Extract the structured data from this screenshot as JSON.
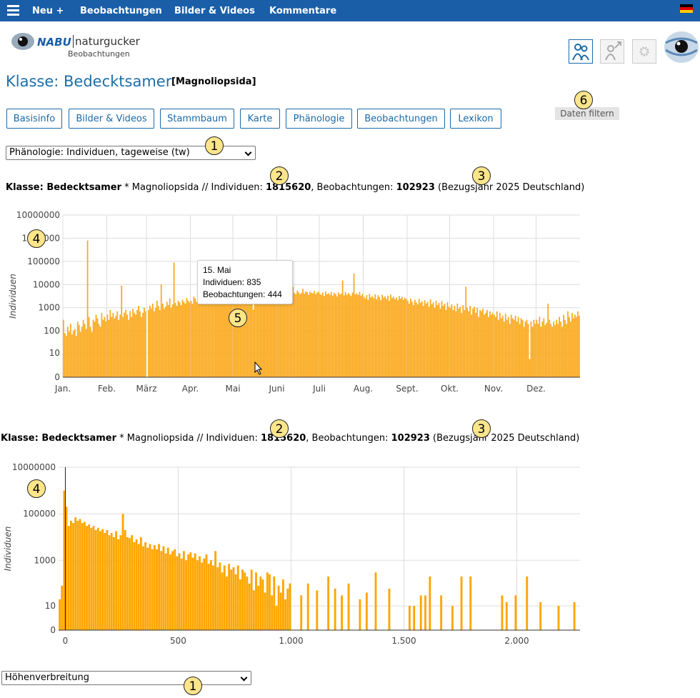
{
  "nav": {
    "items": [
      "Neu +",
      "Beobachtungen",
      "Bilder & Videos",
      "Kommentare"
    ]
  },
  "logo": {
    "brand": "NABU",
    "name": "naturgucker",
    "sub": "Beobachtungen"
  },
  "header": {
    "title": "Klasse: Bedecktsamer",
    "latin": "[Magnoliopsida]"
  },
  "tabs": [
    "Basisinfo",
    "Bilder & Videos",
    "Stammbaum",
    "Karte",
    "Phänologie",
    "Beobachtungen",
    "Lexikon"
  ],
  "filter_button": "Daten filtern",
  "selects": [
    "Phänologie: Individuen, tageweise (tw)",
    "Höhenverbreitung"
  ],
  "summary": {
    "taxon": "Klasse: Bedecktsamer",
    "mid": " * Magnoliopsida // Individuen: ",
    "individuals": 1815620,
    "obs_label": ", Beobachtungen: ",
    "observations": 102923,
    "suffix": " (Bezugsjahr 2025 Deutschland)"
  },
  "tooltip": {
    "date": "15. Mai",
    "individuals": "Individuen: 835",
    "observations": "Beobachtungen: 444"
  },
  "annotations": [
    "1",
    "2",
    "3",
    "4",
    "5",
    "6"
  ],
  "chart_data": [
    {
      "type": "bar",
      "ylabel": "Individuen",
      "color": "#fbaa1e",
      "yscale": "symlog",
      "grid": true,
      "ylim": [
        0,
        10000000
      ],
      "yticks": [
        0,
        10,
        100,
        1000,
        10000,
        100000,
        1000000,
        10000000
      ],
      "months": [
        {
          "label": "Jan.",
          "values": [
            300,
            80,
            60,
            150,
            90,
            200,
            70,
            100,
            120,
            60,
            250,
            180,
            90,
            150,
            300,
            200,
            120,
            800000,
            400,
            150,
            90,
            300,
            250,
            500,
            350,
            200,
            150,
            600,
            300,
            400,
            250
          ]
        },
        {
          "label": "Feb.",
          "values": [
            500,
            300,
            800,
            400,
            600,
            350,
            450,
            700,
            300,
            500,
            9000,
            400,
            600,
            800,
            500,
            300,
            700,
            400,
            900,
            600,
            500,
            800,
            1200,
            700,
            400,
            600,
            1000,
            700
          ]
        },
        {
          "label": "März",
          "values": [
            0,
            800,
            1200,
            900,
            1500,
            700,
            1000,
            2000,
            1200,
            800,
            10000,
            1500,
            900,
            1100,
            1800,
            1300,
            2500,
            1000,
            1400,
            90000,
            1600,
            1200,
            2000,
            1700,
            1300,
            2200,
            1800,
            1500,
            2600,
            2000,
            1700
          ]
        },
        {
          "label": "Apr.",
          "values": [
            2000,
            1500,
            3000,
            2500,
            1800,
            8000,
            2200,
            2800,
            1900,
            3500,
            2400,
            2000,
            3200,
            2700,
            5000,
            2300,
            3000,
            2600,
            4000,
            2100,
            3300,
            2900,
            2500,
            3800,
            2700,
            3100,
            2400,
            3600,
            2800,
            3400
          ]
        },
        {
          "label": "Mai",
          "values": [
            3000,
            4500,
            2500,
            3800,
            3200,
            4200,
            2800,
            3600,
            5000,
            3100,
            4000,
            2900,
            3500,
            3300,
            835,
            4000,
            3000,
            4500,
            3700,
            2800,
            3900,
            4200,
            3100,
            5500,
            3600,
            4300,
            2900,
            3800,
            4600,
            3500,
            4100
          ]
        },
        {
          "label": "Juni",
          "values": [
            3500,
            5000,
            3800,
            4200,
            6000,
            3600,
            4500,
            3900,
            5200,
            4100,
            3700,
            8000,
            4300,
            3800,
            5500,
            4600,
            3900,
            4400,
            6500,
            4000,
            5100,
            4700,
            3600,
            4900,
            4400,
            4200,
            5300,
            3800,
            4500,
            5000
          ]
        },
        {
          "label": "Juli",
          "values": [
            4000,
            3500,
            4500,
            3200,
            5000,
            3800,
            4200,
            3600,
            4800,
            3300,
            4400,
            3900,
            3100,
            4600,
            3700,
            4100,
            15000,
            3400,
            4700,
            3600,
            4300,
            3800,
            3200,
            4500,
            30000,
            3700,
            4200,
            3500,
            4800,
            3300,
            4000
          ]
        },
        {
          "label": "Aug.",
          "values": [
            3000,
            2500,
            3500,
            2200,
            4000,
            2800,
            3200,
            2600,
            3800,
            2300,
            3400,
            2900,
            2100,
            3600,
            2700,
            3100,
            2400,
            3300,
            2000,
            3700,
            2600,
            3000,
            2300,
            2800,
            2100,
            3200,
            2500,
            2900,
            2200,
            2700,
            2400
          ]
        },
        {
          "label": "Sept.",
          "values": [
            2000,
            1500,
            2500,
            1800,
            1300,
            2200,
            1700,
            1400,
            2400,
            1600,
            1900,
            1200,
            2100,
            1500,
            1800,
            1100,
            2300,
            1400,
            1700,
            1000,
            2000,
            1300,
            1600,
            900,
            1900,
            1200,
            1500,
            800,
            1700,
            1100
          ]
        },
        {
          "label": "Okt.",
          "values": [
            1000,
            1400,
            800,
            1200,
            700,
            1500,
            900,
            1100,
            600,
            1300,
            800,
            8000,
            1000,
            700,
            1200,
            500,
            900,
            1100,
            600,
            1000,
            400,
            800,
            700,
            900,
            500,
            600,
            800,
            400,
            700,
            500,
            600
          ]
        },
        {
          "label": "Nov.",
          "values": [
            500,
            400,
            700,
            300,
            600,
            350,
            450,
            250,
            550,
            300,
            400,
            200,
            500,
            350,
            300,
            450,
            250,
            400,
            200,
            350,
            300,
            150,
            250,
            300,
            200,
            5,
            250,
            150,
            300,
            200
          ]
        },
        {
          "label": "Dez.",
          "values": [
            300,
            200,
            400,
            150,
            250,
            350,
            180,
            220,
            1500,
            300,
            200,
            150,
            250,
            180,
            300,
            200,
            400,
            250,
            150,
            500,
            300,
            200,
            700,
            400,
            250,
            600,
            350,
            500,
            400,
            700,
            450
          ]
        }
      ]
    },
    {
      "type": "bar",
      "ylabel": "Individuen",
      "color": "#ffa500",
      "yscale": "symlog",
      "grid": true,
      "ylim": [
        0,
        10000000
      ],
      "yticks": [
        0,
        10,
        1000,
        100000,
        10000000
      ],
      "xlim": [
        -30,
        2280
      ],
      "xticks": [
        0,
        500,
        {
          "value": 1000,
          "label": "1.000"
        },
        {
          "value": 1500,
          "label": "1.500"
        },
        {
          "value": 2000,
          "label": "2.000"
        }
      ],
      "x": [
        -25,
        -15,
        -5,
        5,
        15,
        25,
        35,
        45,
        55,
        65,
        75,
        85,
        95,
        105,
        115,
        125,
        135,
        145,
        155,
        165,
        175,
        185,
        195,
        205,
        215,
        225,
        235,
        245,
        255,
        265,
        275,
        285,
        295,
        305,
        315,
        325,
        335,
        345,
        355,
        365,
        375,
        385,
        395,
        405,
        415,
        425,
        435,
        445,
        455,
        465,
        475,
        485,
        495,
        505,
        515,
        525,
        535,
        545,
        555,
        565,
        575,
        585,
        595,
        605,
        615,
        625,
        635,
        645,
        655,
        665,
        675,
        685,
        695,
        705,
        715,
        725,
        735,
        745,
        755,
        765,
        775,
        785,
        795,
        805,
        815,
        825,
        835,
        845,
        855,
        865,
        875,
        885,
        895,
        905,
        915,
        925,
        935,
        945,
        955,
        965,
        975,
        985,
        995,
        1045,
        1075,
        1115,
        1165,
        1195,
        1225,
        1255,
        1305,
        1335,
        1375,
        1435,
        1525,
        1545,
        1575,
        1595,
        1615,
        1665,
        1715,
        1755,
        1795,
        1935,
        1955,
        1995,
        2045,
        2105,
        2185,
        2255
      ],
      "values": [
        20,
        80,
        1000000,
        200000,
        30000,
        50000,
        40000,
        70000,
        50000,
        60000,
        40000,
        45000,
        30000,
        35000,
        25000,
        30000,
        20000,
        25000,
        18000,
        22000,
        15000,
        20000,
        12000,
        15000,
        10000,
        18000,
        8000,
        12000,
        100000,
        20000,
        10000,
        9000,
        12000,
        6000,
        8000,
        5000,
        10000,
        4000,
        6000,
        3500,
        5000,
        3000,
        4500,
        3000,
        5000,
        2500,
        4000,
        2000,
        3500,
        1800,
        2500,
        3000,
        1500,
        2000,
        1200,
        2500,
        1000,
        1800,
        2200,
        1300,
        2000,
        1000,
        1500,
        800,
        1200,
        1800,
        700,
        1000,
        600,
        2500,
        500,
        800,
        300,
        600,
        200,
        700,
        400,
        500,
        250,
        600,
        150,
        400,
        300,
        200,
        100,
        400,
        50,
        300,
        80,
        200,
        150,
        40,
        300,
        250,
        30,
        200,
        10,
        80,
        40,
        150,
        20,
        60,
        100,
        30,
        100,
        50,
        200,
        60,
        30,
        100,
        20,
        40,
        300,
        60,
        10,
        10,
        30,
        30,
        200,
        30,
        10,
        200,
        200,
        30,
        15,
        30,
        200,
        15,
        10,
        15
      ]
    }
  ]
}
